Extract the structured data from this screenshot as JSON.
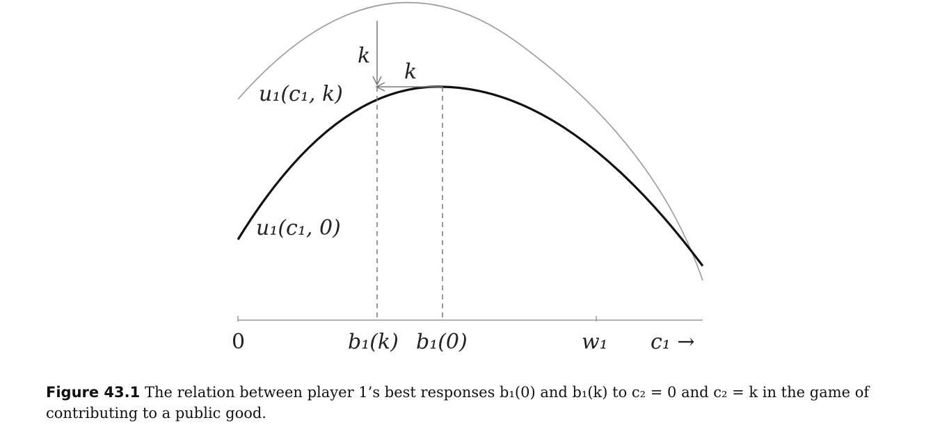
{
  "figure": {
    "axis": {
      "origin_label": "0",
      "b1k_label": "b₁(k)",
      "b10_label": "b₁(0)",
      "w1_label": "w₁",
      "c1_label": "c₁ →"
    },
    "curves": {
      "upper_label": "u₁(c₁, k)",
      "lower_label": "u₁(c₁, 0)"
    },
    "shift_labels": {
      "vertical": "k",
      "horizontal": "k"
    },
    "colors": {
      "lower_curve": "#111111",
      "upper_curve": "#9a9a9a",
      "guides": "#777777"
    }
  },
  "caption": {
    "label": "Figure 43.1",
    "text": "The relation between player 1’s best responses b₁(0) and b₁(k) to c₂ = 0 and c₂ = k in the game of contributing to a public good."
  }
}
